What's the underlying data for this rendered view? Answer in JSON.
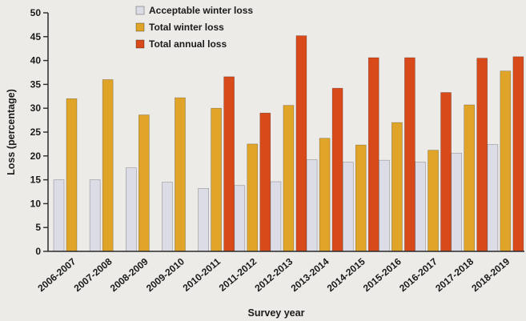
{
  "chart_data": {
    "type": "bar",
    "xlabel": "Survey year",
    "ylabel": "Loss (percentage)",
    "ylim": [
      0,
      50
    ],
    "yticks": [
      0,
      5,
      10,
      15,
      20,
      25,
      30,
      35,
      40,
      45,
      50
    ],
    "grid": false,
    "legend_position": "top-left",
    "categories": [
      "2006-2007",
      "2007-2008",
      "2008-2009",
      "2009-2010",
      "2010-2011",
      "2011-2012",
      "2012-2013",
      "2013-2014",
      "2014-2015",
      "2015-2016",
      "2016-2017",
      "2017-2018",
      "2018-2019"
    ],
    "series": [
      {
        "name": "Acceptable winter loss",
        "color": "#dcdce6",
        "values": [
          15,
          15,
          17.5,
          14.5,
          13.2,
          13.8,
          14.6,
          19.2,
          18.7,
          19.1,
          18.7,
          20.6,
          22.4
        ]
      },
      {
        "name": "Total winter loss",
        "color": "#e0a528",
        "values": [
          32,
          36,
          28.6,
          32.2,
          30,
          22.5,
          30.6,
          23.7,
          22.3,
          27,
          21.2,
          30.7,
          37.8
        ]
      },
      {
        "name": "Total annual loss",
        "color": "#d84a1a",
        "values": [
          null,
          null,
          null,
          null,
          36.6,
          29,
          45.2,
          34.2,
          40.6,
          40.6,
          33.3,
          40.5,
          40.8
        ]
      }
    ]
  }
}
